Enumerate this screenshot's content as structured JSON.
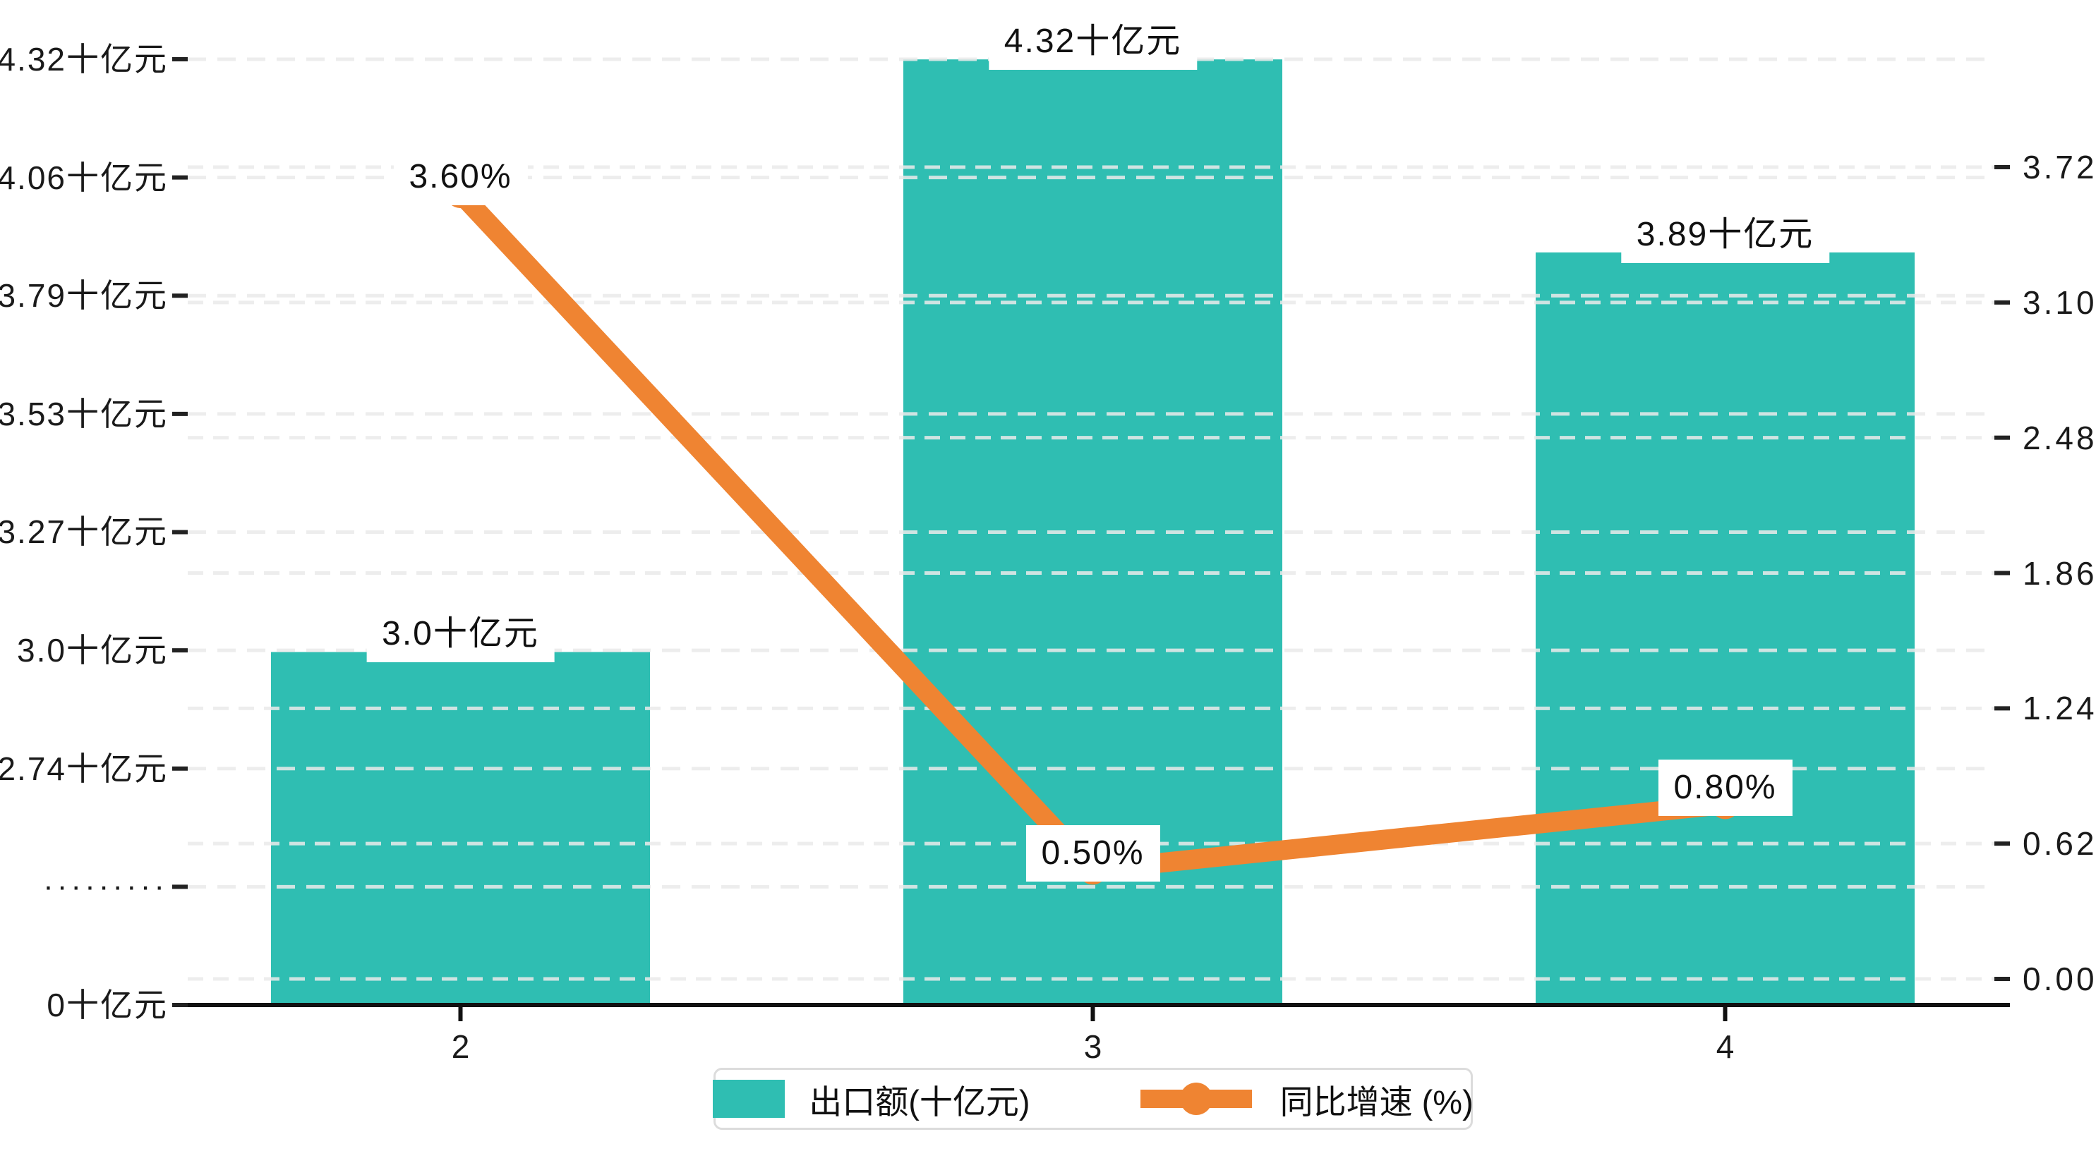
{
  "chart_data": {
    "type": "bar",
    "subtype": "bar+line dual axis",
    "categories": [
      "2",
      "3",
      "4"
    ],
    "series": [
      {
        "name": "出口额(十亿元)",
        "type": "bar",
        "axis": "left",
        "values": [
          3.0,
          4.32,
          3.89
        ],
        "value_labels": [
          "3.0十亿元",
          "4.32十亿元",
          "3.89十亿元"
        ],
        "color": "#2fbeb2"
      },
      {
        "name": "同比增速 (%)",
        "type": "line",
        "axis": "right",
        "values": [
          3.6,
          0.5,
          0.8
        ],
        "value_labels": [
          "3.60%",
          "0.50%",
          "0.80%"
        ],
        "color": "#ef8432"
      }
    ],
    "left_axis": {
      "tick_labels": [
        "0十亿元",
        "·········",
        "2.74十亿元",
        "3.0十亿元",
        "3.27十亿元",
        "3.53十亿元",
        "3.79十亿元",
        "4.06十亿元",
        "4.32十亿元"
      ],
      "tick_values": [
        0,
        null,
        2.74,
        3.0,
        3.27,
        3.53,
        3.79,
        4.06,
        4.32
      ],
      "broken_axis": true,
      "unit": "十亿元"
    },
    "right_axis": {
      "tick_labels": [
        "0.00",
        "0.62",
        "1.24",
        "1.86",
        "2.48",
        "3.10",
        "3.72"
      ],
      "tick_values": [
        0.0,
        0.62,
        1.24,
        1.86,
        2.48,
        3.1,
        3.72
      ],
      "unit": "%"
    },
    "grid": true,
    "legend_position": "bottom-center",
    "title": ""
  },
  "colors": {
    "bar": "#2fbeb2",
    "line": "#ef8432",
    "grid": "#ebebeb",
    "axis": "#111111",
    "text": "#1a1a1a",
    "label_background": "#ffffff",
    "legend_border": "#dcdcdc"
  }
}
